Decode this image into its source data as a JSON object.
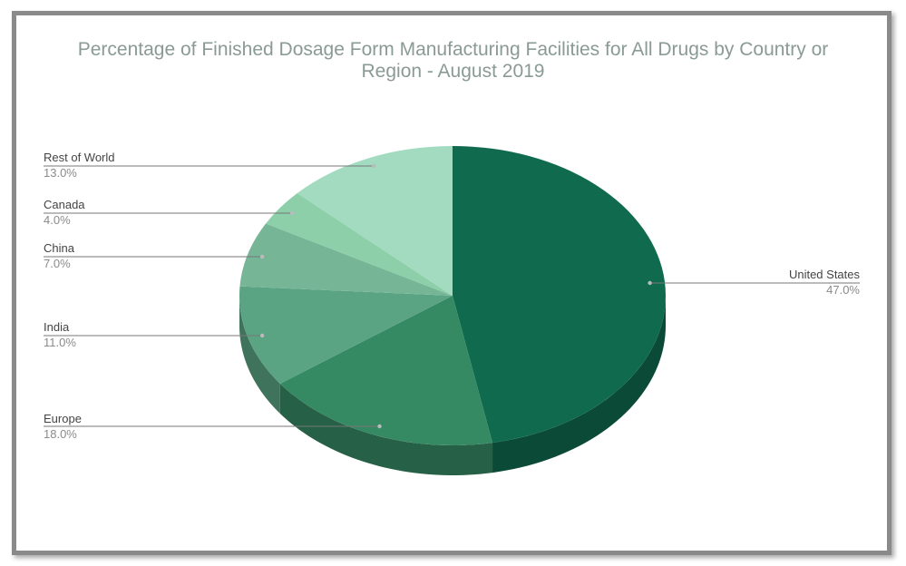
{
  "chart_data": {
    "type": "pie",
    "title": "Percentage of Finished Dosage Form Manufacturing Facilities for All Drugs by Country or\nRegion - August 2019",
    "slices": [
      {
        "label": "United States",
        "value": 47.0,
        "value_label": "47.0%",
        "color": "#106b4e",
        "side_color": "#0a4a36"
      },
      {
        "label": "Europe",
        "value": 18.0,
        "value_label": "18.0%",
        "color": "#368a63",
        "side_color": "#266046"
      },
      {
        "label": "India",
        "value": 11.0,
        "value_label": "11.0%",
        "color": "#5aa483",
        "side_color": "#3f735c"
      },
      {
        "label": "China",
        "value": 7.0,
        "value_label": "7.0%",
        "color": "#76b697",
        "side_color": "#527f69"
      },
      {
        "label": "Canada",
        "value": 4.0,
        "value_label": "4.0%",
        "color": "#8ccfa9",
        "side_color": "#629176"
      },
      {
        "label": "Rest of World",
        "value": 13.0,
        "value_label": "13.0%",
        "color": "#a2dbc0",
        "side_color": "#719986"
      }
    ],
    "legend": "none",
    "style": "3d"
  }
}
